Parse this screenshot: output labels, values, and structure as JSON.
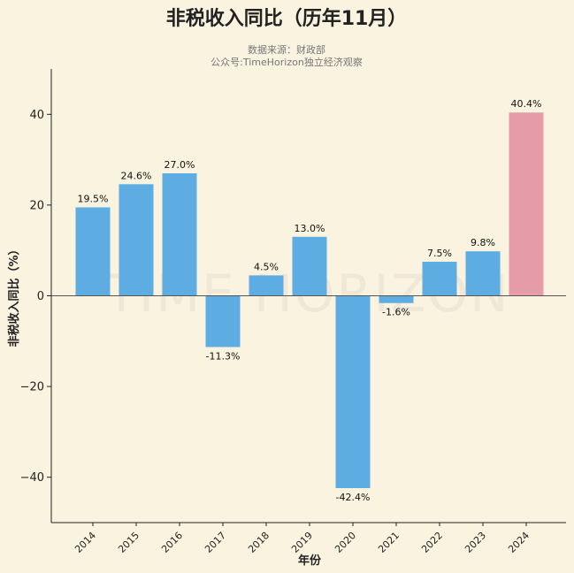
{
  "chart_data": {
    "type": "bar",
    "title": "非税收入同比（历年11月）",
    "subtitle_lines": [
      "数据来源：财政部",
      "公众号:TimeHorizon独立经济观察"
    ],
    "watermark": "TIME HORIZON",
    "xlabel": "年份",
    "ylabel": "非税收入同比（%）",
    "categories": [
      "2014",
      "2015",
      "2016",
      "2017",
      "2018",
      "2019",
      "2020",
      "2021",
      "2022",
      "2023",
      "2024"
    ],
    "values": [
      19.5,
      24.6,
      27.0,
      -11.3,
      4.5,
      13.0,
      -42.4,
      -1.6,
      7.5,
      9.8,
      40.4
    ],
    "value_labels": [
      "19.5%",
      "24.6%",
      "27.0%",
      "-11.3%",
      "4.5%",
      "13.0%",
      "-42.4%",
      "-1.6%",
      "7.5%",
      "9.8%",
      "40.4%"
    ],
    "ylim": [
      -50,
      50
    ],
    "yticks": [
      -40,
      -20,
      0,
      20,
      40
    ],
    "ytick_labels": [
      "−40",
      "−20",
      "0",
      "20",
      "40"
    ],
    "grid": false,
    "colors": {
      "default_bar": "#5dade2",
      "highlight_bar": "#e69ba8",
      "background": "#faf3e0"
    },
    "highlight_category": "2024"
  }
}
